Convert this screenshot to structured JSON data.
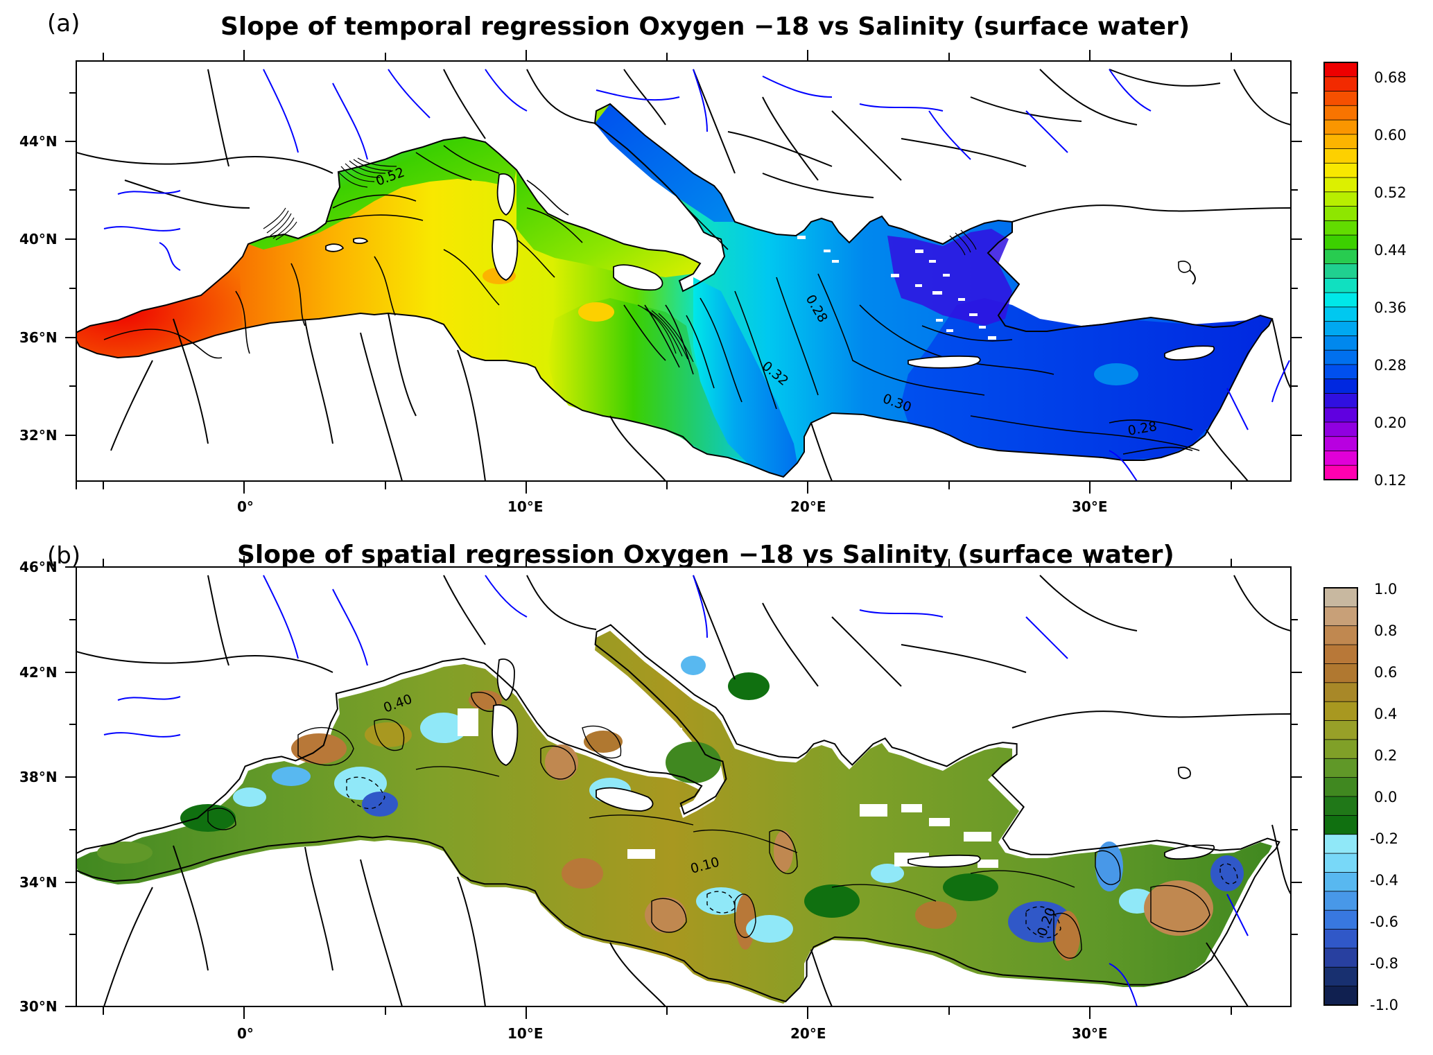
{
  "panel_a": {
    "letter": "(a)",
    "title": "Slope of temporal regression Oxygen −18 vs Salinity (surface water)",
    "lon_ticks": [
      "0°",
      "10°E",
      "20°E",
      "30°E"
    ],
    "lat_ticks": [
      "44°N",
      "40°N",
      "36°N",
      "32°N"
    ],
    "colorbar_labels": [
      "0.68",
      "0.60",
      "0.52",
      "0.44",
      "0.36",
      "0.28",
      "0.20",
      "0.12"
    ],
    "contour_labels": [
      "0.52",
      "0.28",
      "0.32",
      "0.30",
      "0.28"
    ]
  },
  "panel_b": {
    "letter": "(b)",
    "title": "Slope of spatial regression Oxygen −18 vs Salinity (surface water)",
    "lon_ticks": [
      "0°",
      "10°E",
      "20°E",
      "30°E"
    ],
    "lat_ticks": [
      "46°N",
      "42°N",
      "38°N",
      "34°N",
      "30°N"
    ],
    "colorbar_labels": [
      "1.0",
      "0.8",
      "0.6",
      "0.4",
      "0.2",
      "0.0",
      "-0.2",
      "-0.4",
      "-0.6",
      "-0.8",
      "-1.0"
    ],
    "contour_labels": [
      "0.40",
      "0.10",
      "0.20"
    ]
  },
  "colors": {
    "rainbow_top_to_bottom": [
      "#ee0000",
      "#f22a00",
      "#f65000",
      "#f87400",
      "#fa9600",
      "#fcb400",
      "#fdd000",
      "#f8e800",
      "#dcf000",
      "#b8ee00",
      "#8ee600",
      "#62dc00",
      "#3cd000",
      "#28cc50",
      "#20d090",
      "#10e0c0",
      "#00e8e8",
      "#00c8f0",
      "#00a8f0",
      "#0088ee",
      "#0070ee",
      "#0050ee",
      "#0028e0",
      "#3010e0",
      "#6000e0",
      "#9000e0",
      "#b800e0",
      "#e000d8",
      "#ff00b0"
    ],
    "brown_green_blue_top_to_bottom": [
      "#c8b8a0",
      "#c8a078",
      "#c08850",
      "#b87838",
      "#b07830",
      "#a88828",
      "#a89820",
      "#98a028",
      "#80a028",
      "#609828",
      "#408820",
      "#207818",
      "#107010",
      "#90e8f8",
      "#78d8f8",
      "#58b8f0",
      "#4898e8",
      "#3878e0",
      "#3058c8",
      "#2840a0",
      "#183070",
      "#102050"
    ],
    "river": "#0000ff",
    "coast": "#000000"
  }
}
